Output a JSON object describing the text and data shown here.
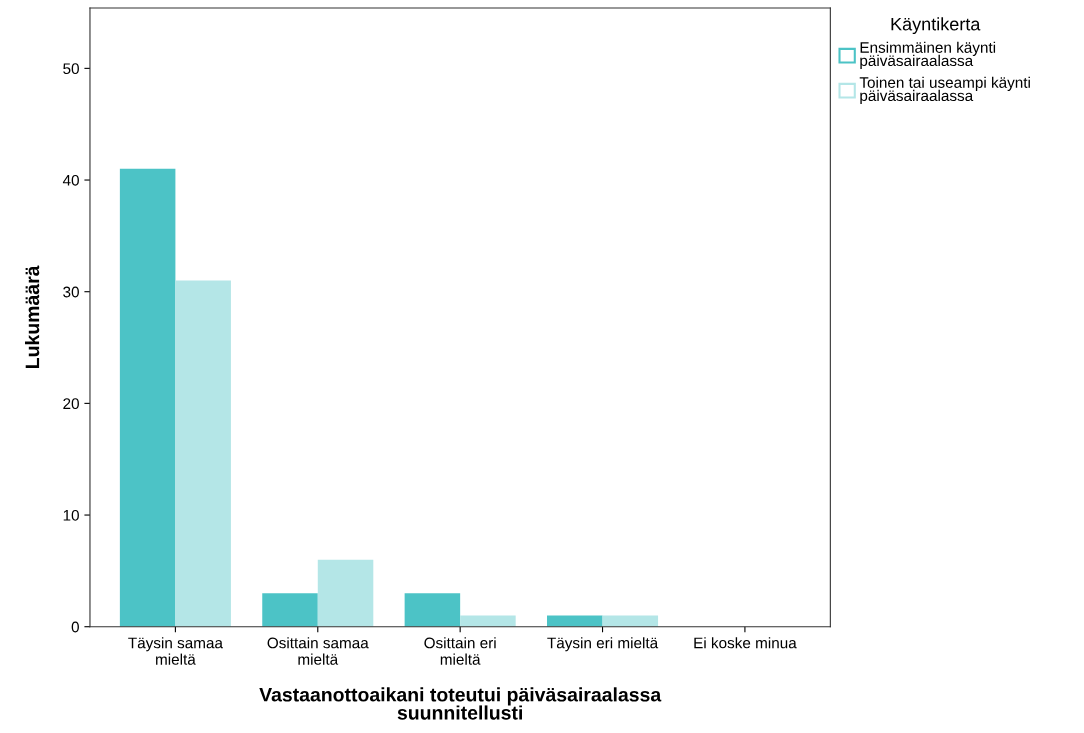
{
  "chart_data": {
    "type": "bar",
    "xlabel": "Vastaanottoaikani toteutui päiväsairaalassa\nsuunnitellusti",
    "ylabel": "Lukumäärä",
    "legend_title": "Käyntikerta",
    "categories": [
      "Täysin samaa\nmieltä",
      "Osittain samaa\nmieltä",
      "Osittain eri\nmieltä",
      "Täysin eri mieltä",
      "Ei koske minua"
    ],
    "series": [
      {
        "name": "Ensimmäinen käynti\npäiväsairaalassa",
        "color": "#4cc3c6",
        "values": [
          41,
          3,
          3,
          1,
          0
        ]
      },
      {
        "name": "Toinen tai useampi käynti\npäiväsairaalassa",
        "color": "#b4e6e7",
        "values": [
          31,
          6,
          1,
          1,
          0
        ]
      }
    ],
    "ylim": [
      0,
      55.4
    ],
    "yticks": [
      0,
      10,
      20,
      30,
      40,
      50
    ],
    "grid": false,
    "legend": "top right"
  }
}
